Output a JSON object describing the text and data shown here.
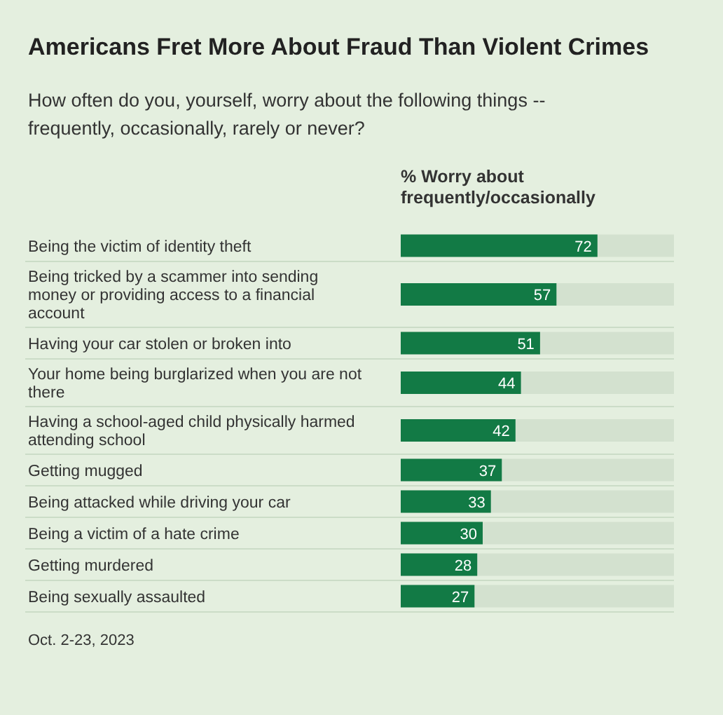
{
  "chart_data": {
    "type": "bar",
    "orientation": "horizontal",
    "title": "Americans Fret More About Fraud Than Violent Crimes",
    "subtitle": "How often do you, yourself, worry about the following things -- frequently, occasionally, rarely or never?",
    "xlabel": "% Worry about frequently/occasionally",
    "categories": [
      "Being the victim of identity theft",
      "Being tricked by a scammer into sending money or providing access to a financial account",
      "Having your car stolen or broken into",
      "Your home being burglarized when you are not there",
      "Having a school-aged child physically harmed attending school",
      "Getting mugged",
      "Being attacked while driving your car",
      "Being a victim of a hate crime",
      "Getting murdered",
      "Being sexually assaulted"
    ],
    "values": [
      72,
      57,
      51,
      44,
      42,
      37,
      33,
      30,
      28,
      27
    ],
    "color": "#127a45",
    "xlim": [
      0,
      100
    ],
    "data_labels": true,
    "annotations": [
      "Oct. 2-23, 2023"
    ]
  }
}
